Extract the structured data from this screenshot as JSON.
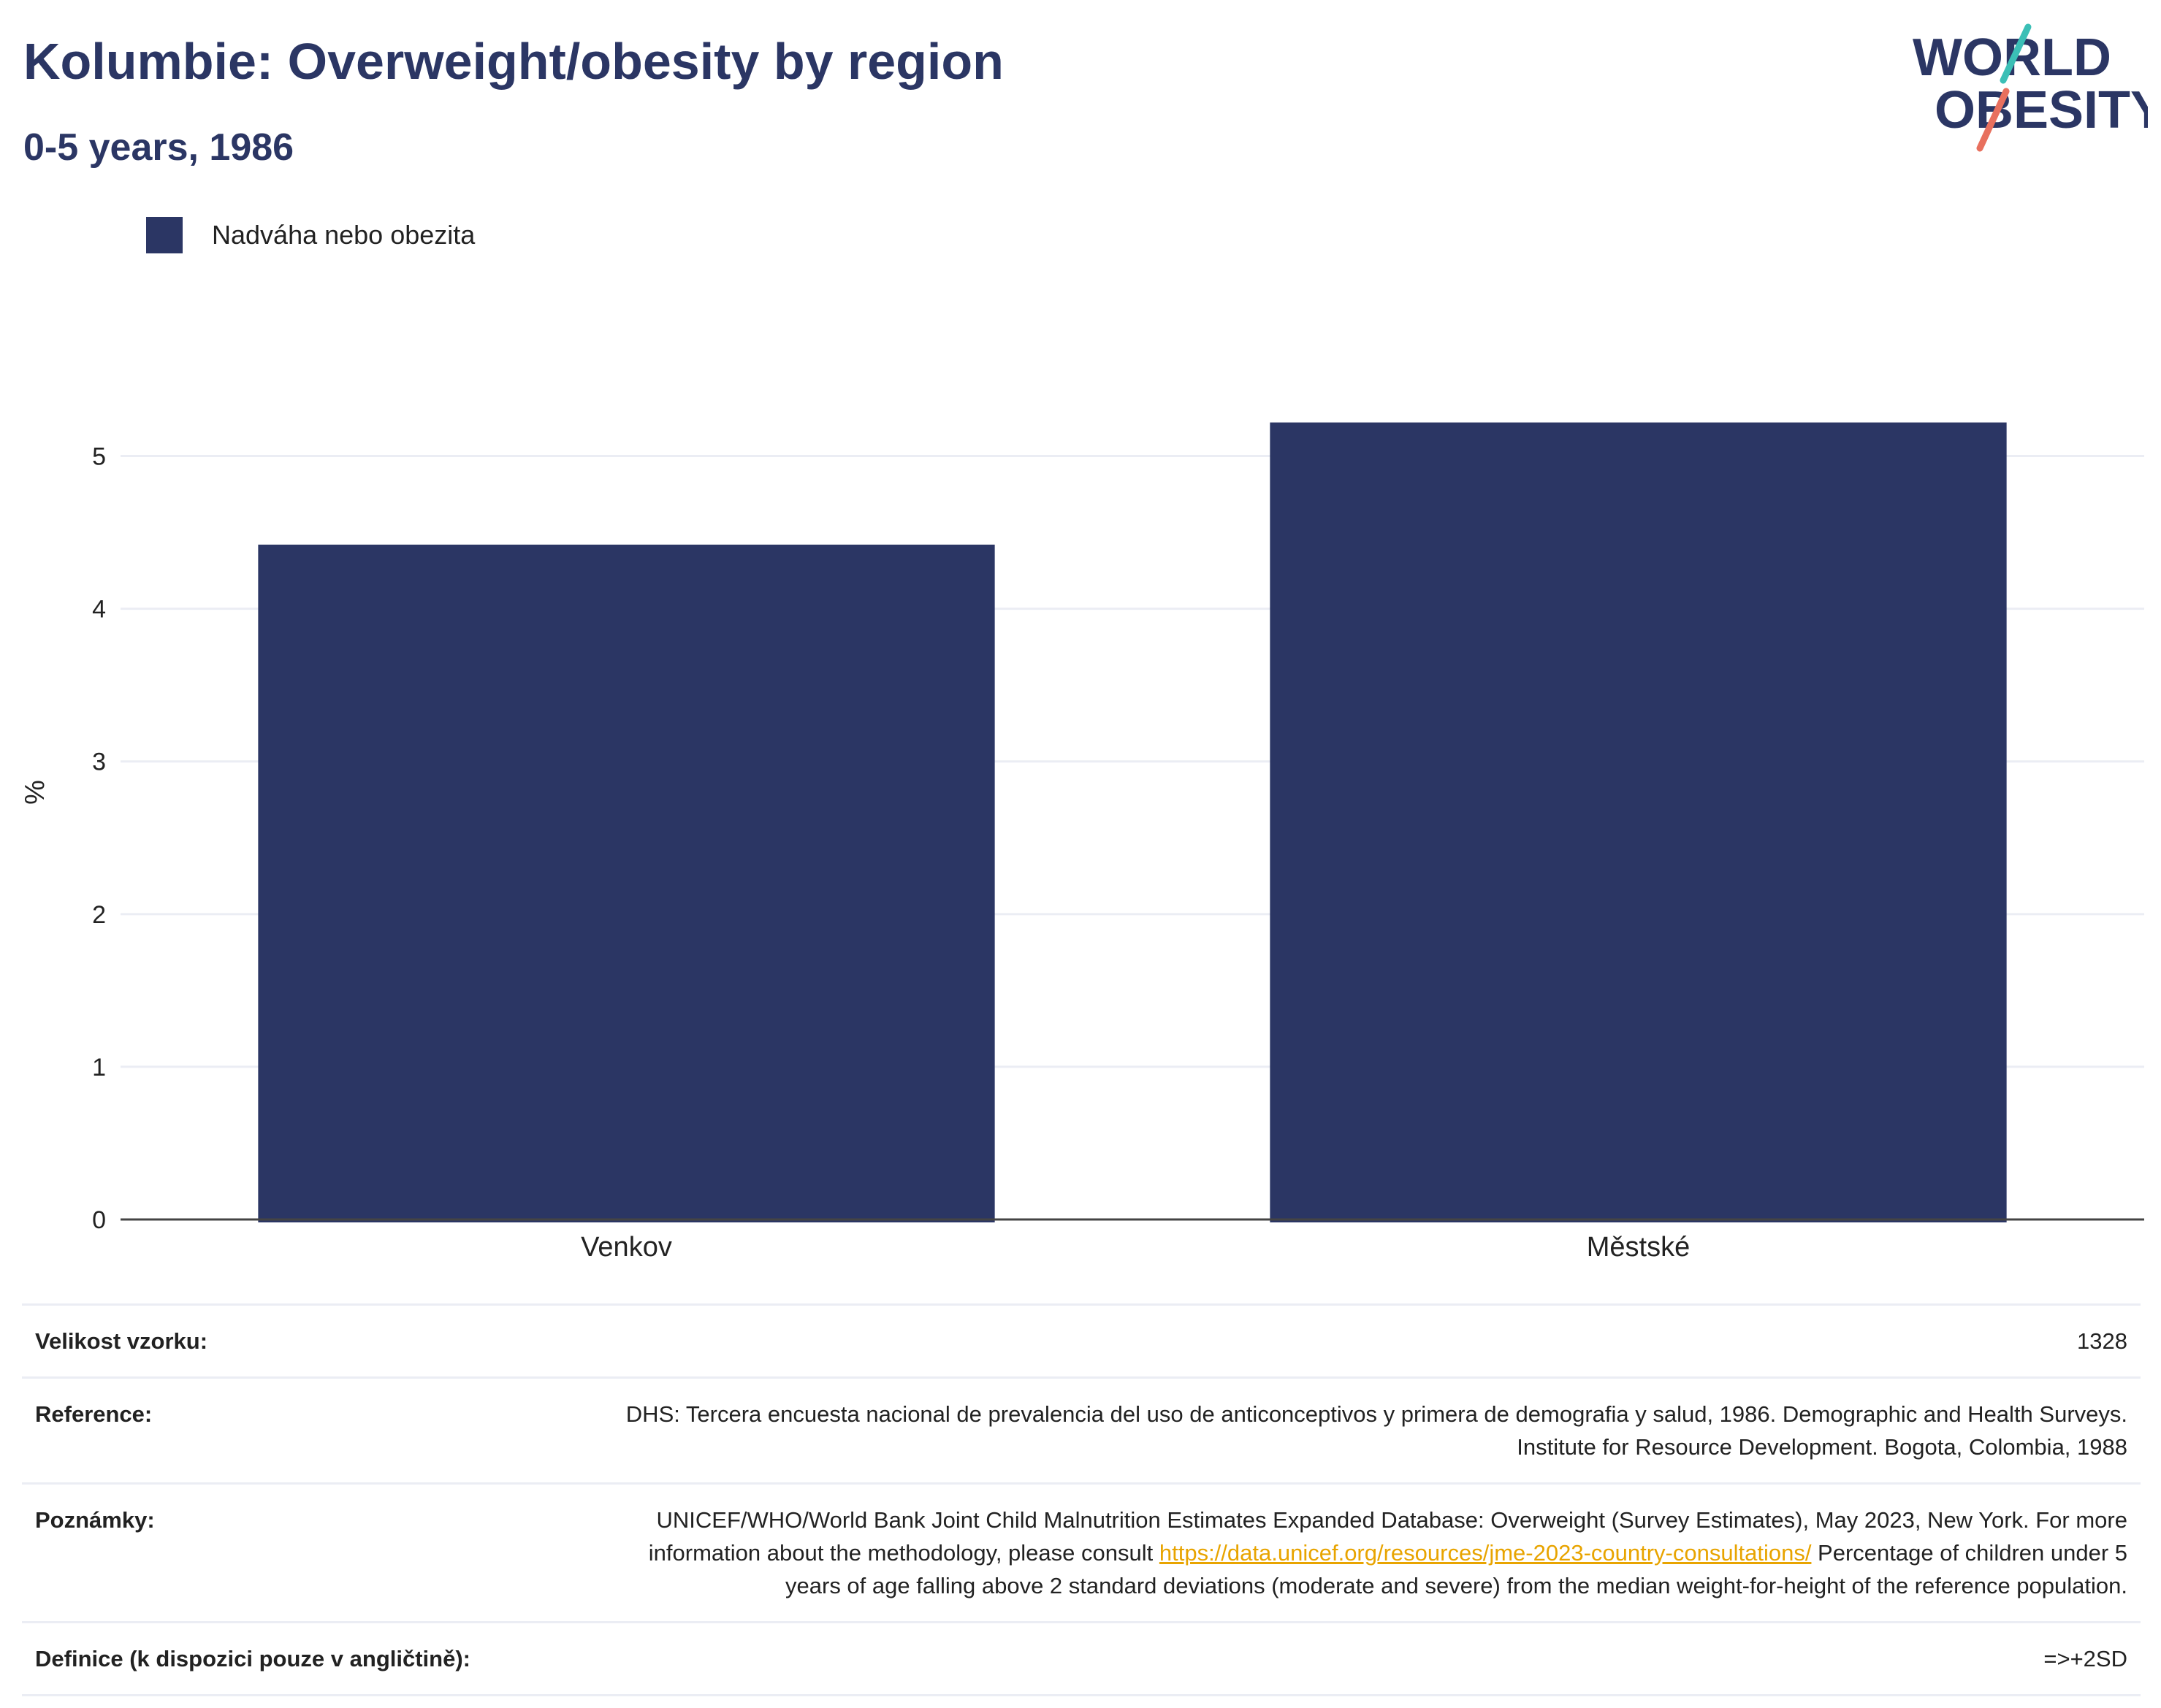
{
  "header": {
    "title": "Kolumbie: Overweight/obesity by region",
    "subtitle": "0-5 years, 1986"
  },
  "logo": {
    "line1": "WORLD",
    "line2": "OBESITY",
    "accent_teal": "#3bbfb6",
    "accent_coral": "#e8705e",
    "text_color": "#2b3664"
  },
  "legend": {
    "label": "Nadváha nebo obezita"
  },
  "chart_data": {
    "type": "bar",
    "categories": [
      "Venkov",
      "Městské"
    ],
    "series": [
      {
        "name": "Nadváha nebo obezita",
        "values": [
          4.42,
          5.22
        ],
        "color": "#2b3664"
      }
    ],
    "ylabel": "%",
    "ylim": [
      0,
      5.5
    ],
    "yticks": [
      0,
      1,
      2,
      3,
      4,
      5
    ],
    "grid": true
  },
  "info": {
    "sample_label": "Velikost vzorku:",
    "sample_value": "1328",
    "reference_label": "Reference:",
    "reference_value": "DHS: Tercera encuesta nacional de prevalencia del uso de anticonceptivos y primera de demografia y salud, 1986. Demographic and Health Surveys. Institute for Resource Development. Bogota, Colombia, 1988",
    "notes_label": "Poznámky:",
    "notes_text1": "UNICEF/WHO/World Bank Joint Child Malnutrition Estimates Expanded Database: Overweight (Survey Estimates), May 2023, New York. For more information about the methodology, please consult ",
    "notes_link": "https://data.unicef.org/resources/jme-2023-country-consultations/",
    "notes_text2": " Percentage of children under 5 years of age falling above 2 standard deviations (moderate and severe) from the median weight-for-height of the reference population.",
    "definition_label": "Definice (k dispozici pouze v angličtině):",
    "definition_value": "=>+2SD"
  }
}
